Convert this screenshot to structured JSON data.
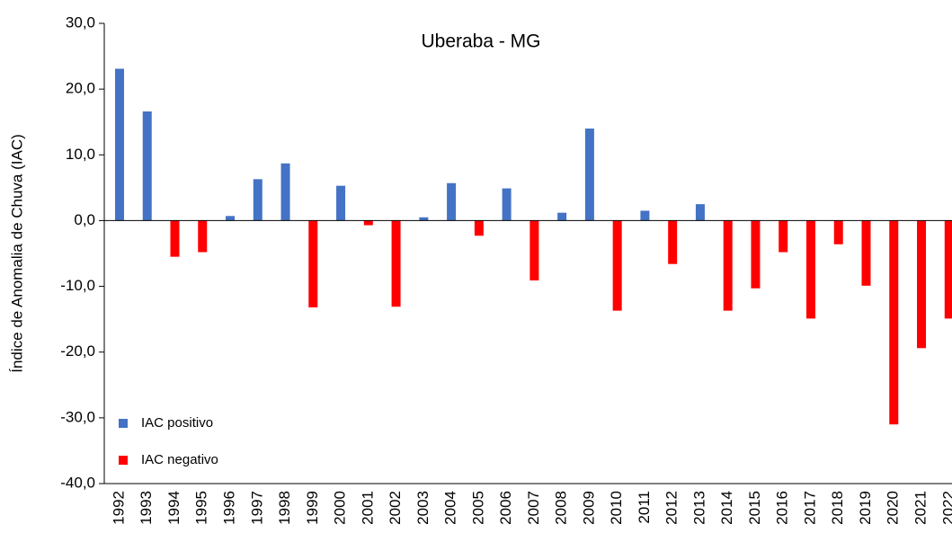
{
  "chart_data": {
    "type": "bar",
    "title": "Uberaba - MG",
    "y_label": "Índice de Anomalia de Chuva (IAC)",
    "categories": [
      "1992",
      "1993",
      "1994",
      "1995",
      "1996",
      "1997",
      "1998",
      "1999",
      "2000",
      "2001",
      "2002",
      "2003",
      "2004",
      "2005",
      "2006",
      "2007",
      "2008",
      "2009",
      "2010",
      "2011",
      "2012",
      "2013",
      "2014",
      "2015",
      "2016",
      "2017",
      "2018",
      "2019",
      "2020",
      "2021",
      "2022"
    ],
    "series": [
      {
        "name": "IAC positivo",
        "color": "#4472c4",
        "values": [
          23.1,
          16.6,
          null,
          null,
          0.7,
          6.3,
          8.7,
          null,
          5.3,
          null,
          null,
          0.5,
          5.7,
          null,
          4.9,
          null,
          1.2,
          14.0,
          null,
          1.5,
          null,
          2.5,
          null,
          null,
          null,
          null,
          null,
          null,
          null,
          null,
          null
        ]
      },
      {
        "name": "IAC negativo",
        "color": "#ff0000",
        "values": [
          null,
          null,
          -5.5,
          -4.8,
          null,
          null,
          null,
          -13.2,
          null,
          -0.7,
          -13.1,
          null,
          null,
          -2.3,
          null,
          -9.1,
          null,
          null,
          -13.7,
          null,
          -6.6,
          null,
          -13.7,
          -10.3,
          -4.8,
          -14.9,
          -3.6,
          -9.9,
          -31.0,
          -19.4,
          -14.9
        ]
      }
    ],
    "ylim": [
      -40,
      30
    ],
    "yticks": [
      {
        "value": -40,
        "label": "-40,0"
      },
      {
        "value": -30,
        "label": "-30,0"
      },
      {
        "value": -20,
        "label": "-20,0"
      },
      {
        "value": -10,
        "label": "-10,0"
      },
      {
        "value": 0,
        "label": "0,0"
      },
      {
        "value": 10,
        "label": "10,0"
      },
      {
        "value": 20,
        "label": "20,0"
      },
      {
        "value": 30,
        "label": "30,0"
      }
    ],
    "legend": "lower left"
  }
}
